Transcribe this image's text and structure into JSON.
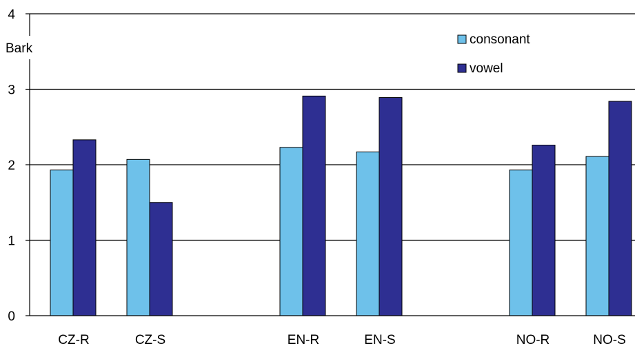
{
  "chart_data": {
    "type": "bar",
    "title": "",
    "xlabel": "",
    "ylabel": "Bark",
    "ylim": [
      0,
      4
    ],
    "yticks": [
      0,
      1,
      2,
      3,
      4
    ],
    "grid": true,
    "legend_position": "top-right",
    "categories": [
      "CZ-R",
      "CZ-S",
      "",
      "EN-R",
      "EN-S",
      "",
      "NO-R",
      "NO-S"
    ],
    "series": [
      {
        "name": "consonant",
        "color": "#6EC1EA",
        "values": [
          1.93,
          2.07,
          null,
          2.23,
          2.17,
          null,
          1.93,
          2.11
        ]
      },
      {
        "name": "vowel",
        "color": "#2E2F92",
        "values": [
          2.33,
          1.5,
          null,
          2.91,
          2.89,
          null,
          2.26,
          2.84
        ]
      }
    ]
  }
}
